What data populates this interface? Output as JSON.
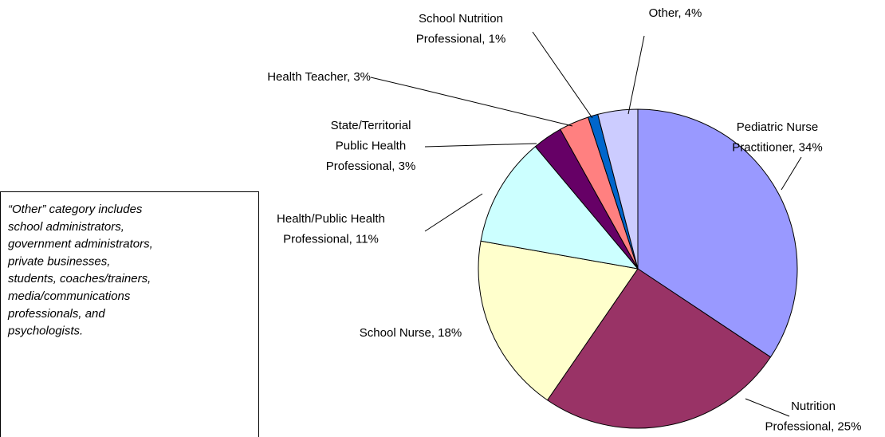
{
  "chart_data": {
    "type": "pie",
    "labels": [
      [
        "Pediatric Nurse",
        "Practitioner, 34%"
      ],
      [
        "Nutrition",
        "Professional, 25%"
      ],
      [
        "School Nurse, 18%"
      ],
      [
        "Health/Public Health",
        "Professional, 11%"
      ],
      [
        "State/Territorial",
        "Public Health",
        "Professional, 3%"
      ],
      [
        "Health Teacher, 3%"
      ],
      [
        "School Nutrition",
        "Professional, 1%"
      ],
      [
        "Other, 4%"
      ]
    ],
    "values": [
      34,
      25,
      18,
      11,
      3,
      3,
      1,
      4
    ],
    "colors": [
      "#9999ff",
      "#993366",
      "#ffffcc",
      "#ccffff",
      "#660066",
      "#ff8080",
      "#0066cc",
      "#ccccff"
    ],
    "note": [
      "“Other” category includes",
      "school administrators,",
      "government administrators,",
      "private businesses,",
      "students, coaches/trainers,",
      "media/communications",
      "professionals, and",
      "psychologists."
    ]
  }
}
